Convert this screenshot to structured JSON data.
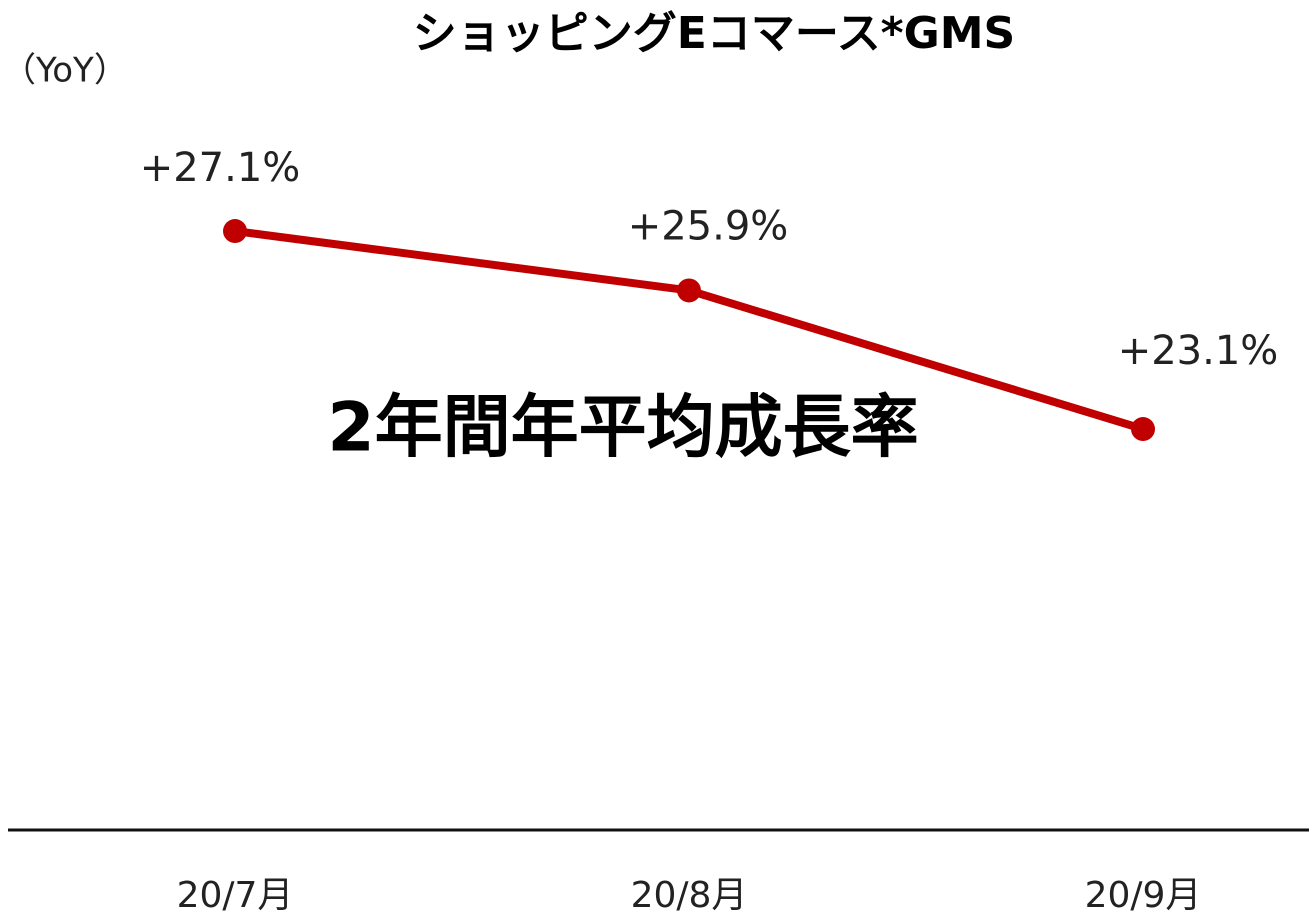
{
  "chart_data": {
    "type": "line",
    "title": "ショッピングEコマース*GMS",
    "y_axis_label": "（YoY）",
    "annotation": "2年間年平均成長率",
    "categories": [
      "20/7月",
      "20/8月",
      "20/9月"
    ],
    "series": [
      {
        "name": "ショッピングEコマースGMS",
        "color": "#c00000",
        "values": [
          27.1,
          25.9,
          23.1
        ],
        "value_labels": [
          "+27.1%",
          "+25.9%",
          "+23.1%"
        ]
      }
    ],
    "ylim": [
      15,
      31
    ]
  }
}
